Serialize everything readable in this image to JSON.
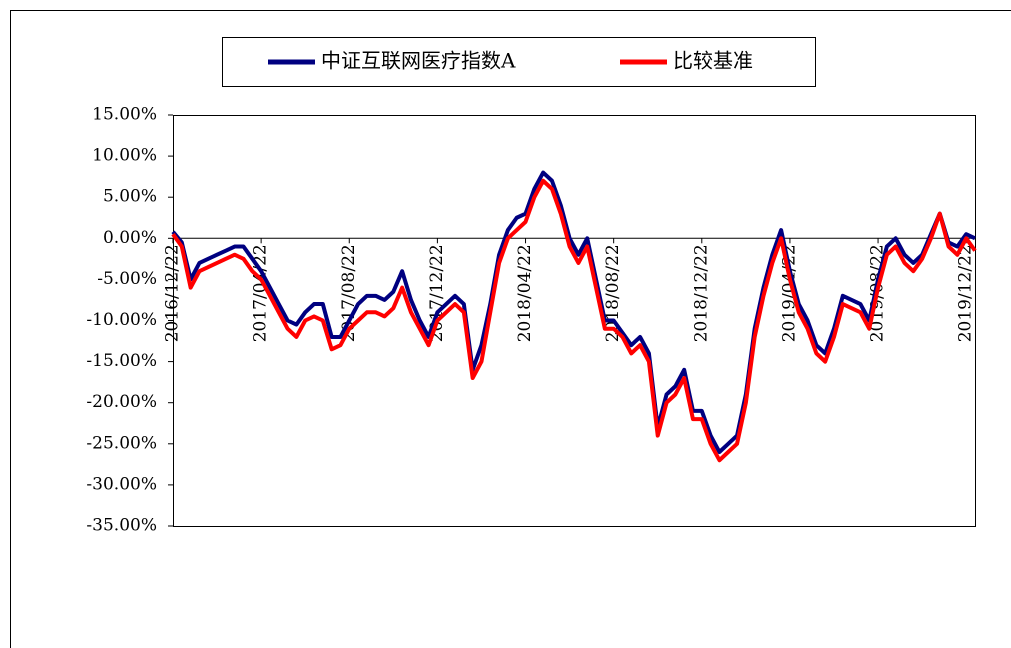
{
  "chart_data": {
    "type": "line",
    "categories": [
      "2016/12/22",
      null,
      null,
      null,
      null,
      null,
      null,
      null,
      null,
      null,
      "2017/04/22",
      null,
      null,
      null,
      null,
      null,
      null,
      null,
      null,
      null,
      "2017/08/22",
      null,
      null,
      null,
      null,
      null,
      null,
      null,
      null,
      null,
      "2017/12/22",
      null,
      null,
      null,
      null,
      null,
      null,
      null,
      null,
      null,
      "2018/04/22",
      null,
      null,
      null,
      null,
      null,
      null,
      null,
      null,
      null,
      "2018/08/22",
      null,
      null,
      null,
      null,
      null,
      null,
      null,
      null,
      null,
      "2018/12/22",
      null,
      null,
      null,
      null,
      null,
      null,
      null,
      null,
      null,
      "2019/04/22",
      null,
      null,
      null,
      null,
      null,
      null,
      null,
      null,
      null,
      "2019/08/22",
      null,
      null,
      null,
      null,
      null,
      null,
      null,
      null,
      null,
      "2019/12/22",
      null
    ],
    "series": [
      {
        "name": "中证互联网医疗指数A",
        "color": "#000080",
        "values": [
          0.8,
          -0.5,
          -5,
          -3,
          -2.5,
          -2,
          -1.5,
          -1,
          -1,
          -2.5,
          -4,
          -6,
          -8,
          -10,
          -10.5,
          -9,
          -8,
          -8,
          -12,
          -12,
          -10,
          -8,
          -7,
          -7,
          -7.5,
          -6.5,
          -4,
          -7.5,
          -10,
          -12,
          -9,
          -8,
          -7,
          -8,
          -16,
          -13,
          -8,
          -2,
          1,
          2.5,
          3,
          6,
          8,
          7,
          4,
          0,
          -2,
          0,
          -5,
          -10,
          -10,
          -11.5,
          -13,
          -12,
          -14,
          -23,
          -19,
          -18,
          -16,
          -21,
          -21,
          -24,
          -26,
          -25,
          -24,
          -19,
          -11,
          -6,
          -2,
          1,
          -4,
          -8,
          -10,
          -13,
          -14,
          -11,
          -7,
          -7.5,
          -8,
          -10,
          -5,
          -1,
          0,
          -2,
          -3,
          -2,
          0.5,
          3,
          -0.5,
          -1,
          0.5,
          0
        ]
      },
      {
        "name": "比较基准",
        "color": "#ff0000",
        "values": [
          0.5,
          -1,
          -6,
          -4,
          -3.5,
          -3,
          -2.5,
          -2,
          -2.5,
          -4,
          -5,
          -7,
          -9,
          -11,
          -12,
          -10,
          -9.5,
          -10,
          -13.5,
          -13,
          -11,
          -10,
          -9,
          -9,
          -9.5,
          -8.5,
          -6,
          -9,
          -11,
          -13,
          -10,
          -9,
          -8,
          -9,
          -17,
          -15,
          -9,
          -3,
          0,
          1,
          2,
          5,
          7,
          6,
          3,
          -1,
          -3,
          -1,
          -6,
          -11,
          -11,
          -12,
          -14,
          -13,
          -15,
          -24,
          -20,
          -19,
          -17,
          -22,
          -22,
          -25,
          -27,
          -26,
          -25,
          -20,
          -12,
          -7,
          -3,
          0,
          -5,
          -9,
          -11,
          -14,
          -15,
          -12,
          -8,
          -8.5,
          -9,
          -11,
          -6,
          -2,
          -1,
          -3,
          -4,
          -2.5,
          0,
          3,
          -1,
          -2,
          0,
          -1.5
        ]
      }
    ],
    "ylim": [
      -35,
      15
    ],
    "yticks": [
      {
        "value": 15,
        "label": "15.00%"
      },
      {
        "value": 10,
        "label": "10.00%"
      },
      {
        "value": 5,
        "label": "5.00%"
      },
      {
        "value": 0,
        "label": "0.00%"
      },
      {
        "value": -5,
        "label": "-5.00%"
      },
      {
        "value": -10,
        "label": "-10.00%"
      },
      {
        "value": -15,
        "label": "-15.00%"
      },
      {
        "value": -20,
        "label": "-20.00%"
      },
      {
        "value": -25,
        "label": "-25.00%"
      },
      {
        "value": -30,
        "label": "-30.00%"
      },
      {
        "value": -35,
        "label": "-35.00%"
      }
    ],
    "grid": false,
    "legend": "top"
  }
}
